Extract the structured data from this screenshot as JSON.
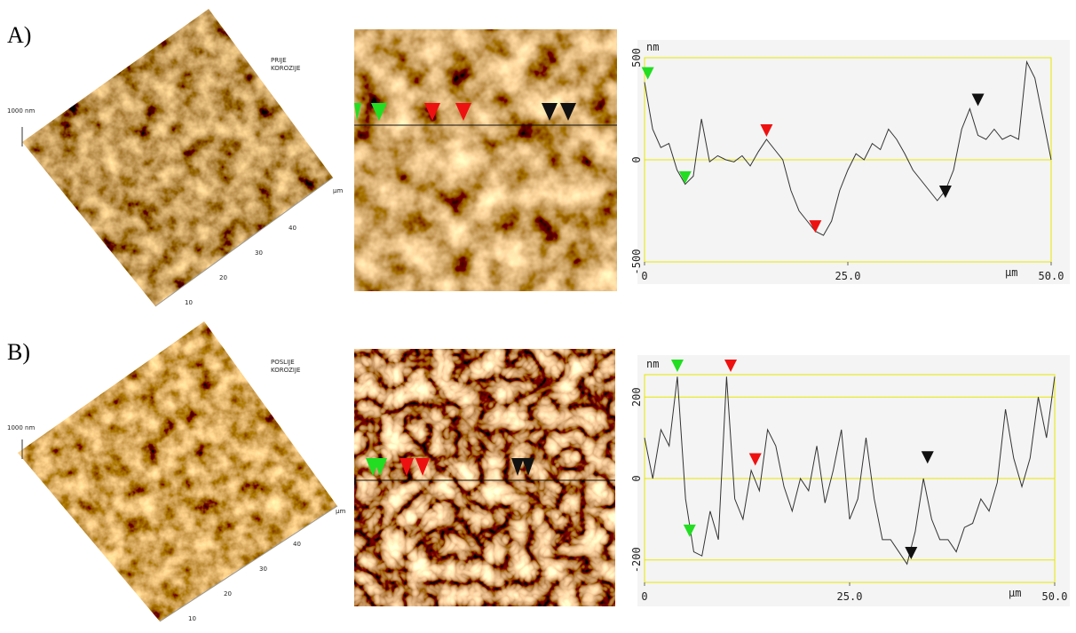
{
  "panels": [
    {
      "label": "A)",
      "surface": {
        "caption": [
          "PRIJE",
          "KOROZIJE"
        ],
        "z_label": "1000 nm",
        "unit": "µm",
        "ticks": [
          10,
          20,
          30,
          40
        ]
      },
      "profile": {
        "type": "line",
        "y_unit": "nm",
        "x_unit": "µm",
        "xlim": [
          0,
          50
        ],
        "ylim": [
          -500,
          500
        ],
        "xticks": [
          0,
          {
            "value": 25,
            "label": "25.0"
          },
          {
            "value": 50,
            "label": "50.0"
          }
        ],
        "yticks": [
          -500,
          0,
          500
        ],
        "x": [
          0,
          1,
          2,
          3,
          4,
          5,
          6,
          7,
          8,
          9,
          10,
          11,
          12,
          13,
          14,
          15,
          16,
          17,
          18,
          19,
          20,
          21,
          22,
          23,
          24,
          25,
          26,
          27,
          28,
          29,
          30,
          31,
          32,
          33,
          34,
          35,
          36,
          37,
          38,
          39,
          40,
          41,
          42,
          43,
          44,
          45,
          46,
          47,
          48,
          49,
          50
        ],
        "values": [
          380,
          150,
          60,
          80,
          -50,
          -120,
          -80,
          200,
          -10,
          20,
          0,
          -10,
          20,
          -30,
          40,
          100,
          50,
          0,
          -150,
          -250,
          -300,
          -350,
          -370,
          -300,
          -150,
          -50,
          30,
          0,
          80,
          50,
          150,
          100,
          30,
          -50,
          -100,
          -150,
          -200,
          -150,
          -50,
          150,
          250,
          120,
          100,
          150,
          100,
          120,
          100,
          480,
          400,
          200,
          0
        ],
        "markers": [
          {
            "color": "#22dd22",
            "x": 0.4,
            "y": 380
          },
          {
            "color": "#22dd22",
            "x": 5,
            "y": -130
          },
          {
            "color": "#ee1111",
            "x": 15,
            "y": 100
          },
          {
            "color": "#ee1111",
            "x": 21,
            "y": -370
          },
          {
            "color": "#111111",
            "x": 37,
            "y": -200
          },
          {
            "color": "#111111",
            "x": 41,
            "y": 250
          }
        ]
      }
    },
    {
      "label": "B)",
      "surface": {
        "caption": [
          "POSLIJE",
          "KOROZIJE"
        ],
        "z_label": "1000 nm",
        "unit": "µm",
        "ticks": [
          10,
          20,
          30,
          40
        ]
      },
      "profile": {
        "type": "line",
        "y_unit": "nm",
        "x_unit": "µm",
        "xlim": [
          0,
          50
        ],
        "ylim": [
          -255,
          255
        ],
        "xticks": [
          0,
          {
            "value": 25,
            "label": "25.0"
          },
          {
            "value": 50,
            "label": "50.0"
          }
        ],
        "yticks": [
          -200,
          0,
          200
        ],
        "x": [
          0,
          1,
          2,
          3,
          4,
          5,
          6,
          7,
          8,
          9,
          10,
          11,
          12,
          13,
          14,
          15,
          16,
          17,
          18,
          19,
          20,
          21,
          22,
          23,
          24,
          25,
          26,
          27,
          28,
          29,
          30,
          31,
          32,
          33,
          34,
          35,
          36,
          37,
          38,
          39,
          40,
          41,
          42,
          43,
          44,
          45,
          46,
          47,
          48,
          49,
          50
        ],
        "values": [
          100,
          0,
          120,
          80,
          250,
          -50,
          -180,
          -190,
          -80,
          -150,
          250,
          -50,
          -100,
          20,
          -30,
          120,
          80,
          -20,
          -80,
          0,
          -30,
          80,
          -60,
          20,
          120,
          -100,
          -50,
          100,
          -50,
          -150,
          -150,
          -180,
          -210,
          -130,
          0,
          -100,
          -150,
          -150,
          -180,
          -120,
          -110,
          -50,
          -80,
          -10,
          170,
          50,
          -20,
          50,
          200,
          100,
          250
        ],
        "markers": [
          {
            "color": "#22dd22",
            "x": 4,
            "y": 255
          },
          {
            "color": "#22dd22",
            "x": 5.5,
            "y": -150
          },
          {
            "color": "#ee1111",
            "x": 10.5,
            "y": 255
          },
          {
            "color": "#ee1111",
            "x": 13.5,
            "y": 25
          },
          {
            "color": "#111111",
            "x": 32.5,
            "y": -205
          },
          {
            "color": "#111111",
            "x": 34.5,
            "y": 30
          }
        ]
      }
    }
  ]
}
